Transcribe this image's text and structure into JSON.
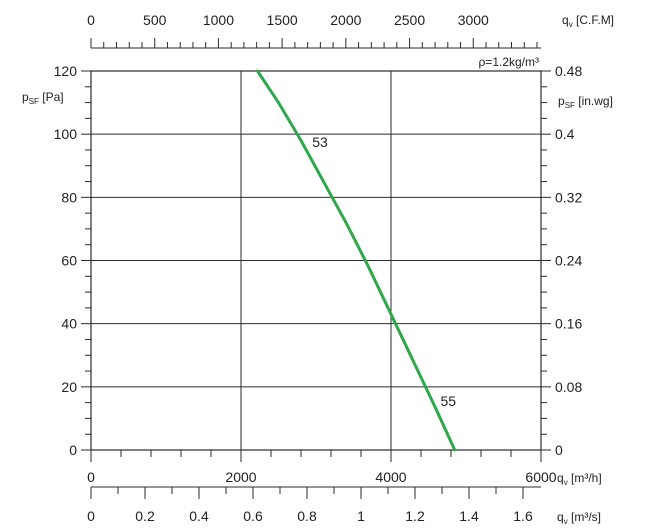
{
  "chart_data": {
    "type": "line",
    "x_primary": {
      "label": "q",
      "sub": "v",
      "unit": "[m³/h]",
      "range": [
        0,
        6000
      ],
      "ticks": [
        0,
        2000,
        4000,
        6000
      ],
      "tick_labels": [
        "0",
        "2000",
        "4000",
        "6000"
      ],
      "minor_step": 400
    },
    "x_top": {
      "label": "q",
      "sub": "v",
      "unit": "[C.F.M]",
      "factor": 1.699,
      "ticks": [
        0,
        500,
        1000,
        1500,
        2000,
        2500,
        3000
      ],
      "tick_labels": [
        "0",
        "500",
        "1000",
        "1500",
        "2000",
        "2500",
        "3000"
      ],
      "minor_step": 100
    },
    "x_bottom": {
      "label": "q",
      "sub": "v",
      "unit": "[m³/s]",
      "factor": 3600,
      "ticks": [
        0,
        0.2,
        0.4,
        0.6,
        0.8,
        1,
        1.2,
        1.4,
        1.6
      ],
      "tick_labels": [
        "0",
        "0.2",
        "0.4",
        "0.6",
        "0.8",
        "1",
        "1.2",
        "1.4",
        "1.6"
      ],
      "minor_step": 0.1
    },
    "y_left": {
      "label": "p",
      "sub": "SF",
      "unit": "[Pa]",
      "range": [
        0,
        120
      ],
      "ticks": [
        0,
        20,
        40,
        60,
        80,
        100,
        120
      ],
      "tick_labels": [
        "0",
        "20",
        "40",
        "60",
        "80",
        "100",
        "120"
      ],
      "minor_step": 5
    },
    "y_right": {
      "label": "p",
      "sub": "SF",
      "unit": "[in.wg]",
      "factor": 250,
      "ticks": [
        0,
        0.08,
        0.16,
        0.24,
        0.32,
        0.4,
        0.48
      ],
      "tick_labels": [
        "0",
        "0.08",
        "0.16",
        "0.24",
        "0.32",
        "0.4",
        "0.48"
      ],
      "minor_step": 0.02
    },
    "grid": true,
    "grid_x": [
      2000,
      4000
    ],
    "grid_y": [
      20,
      40,
      60,
      80,
      100
    ],
    "annotation": "ρ=1.2kg/m³",
    "series": [
      {
        "color": "#2ea84a",
        "x": [
          2220,
          2500,
          2800,
          3100,
          3400,
          3700,
          4000,
          4300,
          4600,
          4850
        ],
        "y": [
          120,
          110,
          98,
          85,
          72,
          58,
          43,
          28,
          13,
          0
        ]
      }
    ],
    "point_labels": [
      {
        "text": "53",
        "x": 2950,
        "y": 96
      },
      {
        "text": "55",
        "x": 4660,
        "y": 14
      }
    ]
  }
}
